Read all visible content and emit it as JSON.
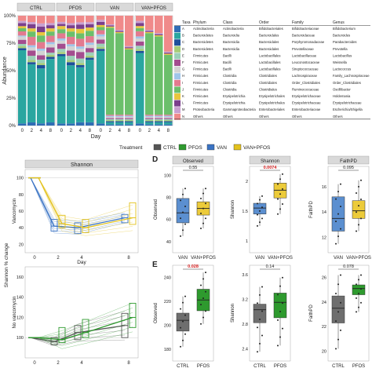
{
  "panel_letters": [
    "D",
    "E"
  ],
  "chart_data": [
    {
      "type": "bar",
      "id": "stacked",
      "facets": [
        "CTRL",
        "PFOS",
        "VAN",
        "VAN+PFOS"
      ],
      "categories": [
        "0",
        "2",
        "4",
        "8"
      ],
      "xlabel": "Day",
      "ylabel": "Abundance",
      "yticks": [
        "0%",
        "25%",
        "50%",
        "75%",
        "100%"
      ],
      "ylim": [
        0,
        1
      ],
      "taxa_colors": [
        "#2f6db5",
        "#2aa6a0",
        "#1e4f9c",
        "#a6cc78",
        "#9cd0b8",
        "#a44d8f",
        "#d3d3d3",
        "#9fc5ea",
        "#e37a8f",
        "#6bbf6b",
        "#e8c63e",
        "#7b3f8c",
        "#c8a0d0",
        "#f08a8a"
      ],
      "series_by_facet": {
        "CTRL": [
          [
            0.02,
            0.03,
            0.02,
            0.03
          ],
          [
            0.7,
            0.55,
            0.5,
            0.6
          ],
          [
            0.02,
            0.02,
            0.03,
            0.02
          ],
          [
            0.02,
            0.02,
            0.02,
            0.02
          ],
          [
            0.02,
            0.04,
            0.03,
            0.02
          ],
          [
            0.04,
            0.05,
            0.04,
            0.05
          ],
          [
            0.03,
            0.03,
            0.04,
            0.03
          ],
          [
            0.01,
            0.02,
            0.02,
            0.02
          ],
          [
            0.04,
            0.08,
            0.06,
            0.06
          ],
          [
            0.03,
            0.05,
            0.06,
            0.04
          ],
          [
            0.02,
            0.03,
            0.03,
            0.03
          ],
          [
            0.03,
            0.04,
            0.05,
            0.03
          ],
          [
            0.02,
            0.02,
            0.03,
            0.02
          ],
          [
            0.05,
            0.06,
            0.07,
            0.07
          ]
        ],
        "PFOS": [
          [
            0.02,
            0.02,
            0.03,
            0.03
          ],
          [
            0.65,
            0.55,
            0.5,
            0.58
          ],
          [
            0.02,
            0.03,
            0.02,
            0.02
          ],
          [
            0.02,
            0.02,
            0.02,
            0.02
          ],
          [
            0.03,
            0.04,
            0.04,
            0.03
          ],
          [
            0.05,
            0.05,
            0.06,
            0.04
          ],
          [
            0.03,
            0.04,
            0.03,
            0.03
          ],
          [
            0.02,
            0.02,
            0.02,
            0.02
          ],
          [
            0.05,
            0.07,
            0.07,
            0.06
          ],
          [
            0.04,
            0.05,
            0.05,
            0.05
          ],
          [
            0.03,
            0.03,
            0.04,
            0.03
          ],
          [
            0.02,
            0.03,
            0.04,
            0.03
          ],
          [
            0.02,
            0.02,
            0.02,
            0.02
          ],
          [
            0.06,
            0.07,
            0.06,
            0.06
          ]
        ],
        "VAN": [
          [
            0.02,
            0.01,
            0.01,
            0.01
          ],
          [
            0.7,
            0.02,
            0.02,
            0.02
          ],
          [
            0.02,
            0.01,
            0.01,
            0.01
          ],
          [
            0.02,
            0.01,
            0.01,
            0.01
          ],
          [
            0.03,
            0.01,
            0.01,
            0.01
          ],
          [
            0.04,
            0.01,
            0.01,
            0.01
          ],
          [
            0.03,
            0.01,
            0.01,
            0.01
          ],
          [
            0.02,
            0.01,
            0.01,
            0.01
          ],
          [
            0.04,
            0.01,
            0.01,
            0.01
          ],
          [
            0.03,
            0.8,
            0.75,
            0.6
          ],
          [
            0.02,
            0.01,
            0.01,
            0.01
          ],
          [
            0.03,
            0.01,
            0.01,
            0.01
          ],
          [
            0.02,
            0.01,
            0.01,
            0.01
          ],
          [
            0.04,
            0.08,
            0.13,
            0.28
          ]
        ],
        "VAN+PFOS": [
          [
            0.02,
            0.01,
            0.01,
            0.01
          ],
          [
            0.68,
            0.02,
            0.02,
            0.02
          ],
          [
            0.02,
            0.01,
            0.01,
            0.01
          ],
          [
            0.02,
            0.01,
            0.01,
            0.01
          ],
          [
            0.03,
            0.01,
            0.01,
            0.01
          ],
          [
            0.04,
            0.01,
            0.01,
            0.01
          ],
          [
            0.03,
            0.01,
            0.01,
            0.01
          ],
          [
            0.02,
            0.01,
            0.01,
            0.01
          ],
          [
            0.05,
            0.01,
            0.01,
            0.01
          ],
          [
            0.03,
            0.75,
            0.72,
            0.55
          ],
          [
            0.02,
            0.01,
            0.01,
            0.01
          ],
          [
            0.03,
            0.01,
            0.01,
            0.01
          ],
          [
            0.02,
            0.01,
            0.01,
            0.01
          ],
          [
            0.05,
            0.13,
            0.16,
            0.33
          ]
        ]
      }
    },
    {
      "type": "table",
      "id": "taxa_table",
      "columns": [
        "Taxa",
        "Phylum",
        "Class",
        "Order",
        "Family",
        "Genus"
      ],
      "rows": [
        [
          "A",
          "Actinobacteria",
          "Actinobacteria",
          "Bifidobacteriales",
          "Bifidobacteriaceae",
          "Bifidobacterium"
        ],
        [
          "B",
          "Bacteroidetes",
          "Bacteroidia",
          "Bacteroidales",
          "Bacteroidaceae",
          "Bacteroides"
        ],
        [
          "C",
          "Bacteroidetes",
          "Bacteroidia",
          "Bacteroidales",
          "Porphyromonadaceae",
          "Parabacteroides"
        ],
        [
          "D",
          "Bacteroidetes",
          "Bacteroidia",
          "Bacteroidales",
          "Prevotellaceae",
          "Prevotella"
        ],
        [
          "E",
          "Firmicutes",
          "Bacilli",
          "Lactobacillales",
          "Lactobacillaceae",
          "Lactobacillus"
        ],
        [
          "F",
          "Firmicutes",
          "Bacilli",
          "Lactobacillales",
          "Leuconostocaceae",
          "Weissella"
        ],
        [
          "G",
          "Firmicutes",
          "Bacilli",
          "Lactobacillales",
          "Streptococcaceae",
          "Lactococcus"
        ],
        [
          "H",
          "Firmicutes",
          "Clostridia",
          "Clostridiales",
          "Lachnospiraceae",
          "Family_Lachnospiraceae"
        ],
        [
          "I",
          "Firmicutes",
          "Clostridia",
          "Clostridiales",
          "Order_Clostridiales",
          "Order_Clostridiales"
        ],
        [
          "J",
          "Firmicutes",
          "Clostridia",
          "Clostridiales",
          "Ruminococcaceae",
          "Oscillibacter"
        ],
        [
          "K",
          "Firmicutes",
          "Erysipelotrichia",
          "Erysipelotrichales",
          "Erysipelotrichaceae",
          "Holdemania"
        ],
        [
          "L",
          "Firmicutes",
          "Erysipelotrichia",
          "Erysipelotrichales",
          "Erysipelotrichaceae",
          "Erysipelotrichaceae"
        ],
        [
          "M",
          "Proteobacteria",
          "Gammaproteobacteria",
          "Enterobacteriales",
          "Enterobacteriaceae",
          "Escherichia/Shigella"
        ],
        [
          "N",
          "Others",
          "Others",
          "Others",
          "Others",
          "Others"
        ]
      ]
    },
    {
      "type": "line",
      "id": "shannon_change",
      "title": "Shannon",
      "legend": {
        "title": "Treatment",
        "entries": [
          "CTRL",
          "PFOS",
          "VAN",
          "VAN+PFOS"
        ],
        "colors": [
          "#555555",
          "#2e9a2e",
          "#3a73c4",
          "#e3c21d"
        ],
        "placement": "top"
      },
      "xlabel": "Day",
      "ylabel": "Shannon % change",
      "x": [
        0,
        2,
        4,
        8
      ],
      "facets": [
        {
          "label": "Vancomycin",
          "ylim": [
            10,
            110
          ],
          "yticks": [
            20,
            40,
            60,
            80,
            100
          ],
          "groups": [
            {
              "name": "VAN",
              "median": [
                100,
                42,
                40,
                52
              ],
              "q1": [
                100,
                36,
                33,
                46
              ],
              "q3": [
                100,
                50,
                46,
                56
              ]
            },
            {
              "name": "VAN+PFOS",
              "median": [
                100,
                45,
                40,
                52
              ],
              "q1": [
                100,
                40,
                34,
                44
              ],
              "q3": [
                100,
                55,
                50,
                70
              ]
            }
          ]
        },
        {
          "label": "No vancomycin",
          "ylim": [
            80,
            170
          ],
          "yticks": [
            100,
            120,
            140,
            160
          ],
          "groups": [
            {
              "name": "CTRL",
              "median": [
                100,
                96,
                105,
                112
              ],
              "q1": [
                100,
                93,
                98,
                100
              ],
              "q3": [
                100,
                100,
                112,
                124
              ]
            },
            {
              "name": "PFOS",
              "median": [
                100,
                98,
                105,
                120
              ],
              "q1": [
                100,
                95,
                100,
                110
              ],
              "q3": [
                100,
                110,
                118,
                134
              ]
            }
          ]
        }
      ]
    },
    {
      "type": "box",
      "id": "alpha_D",
      "panel": "D",
      "categories": [
        "VAN",
        "VAN+PFOS"
      ],
      "colors": [
        "#5b8fd0",
        "#eccb3a"
      ],
      "metrics": [
        {
          "title": "Observed",
          "ylabel": "Observed",
          "yticks": [
            40,
            60,
            80,
            100
          ],
          "ylim": [
            30,
            108
          ],
          "p": "0.55",
          "sig": false,
          "boxes": [
            {
              "min": 45,
              "q1": 57,
              "med": 66,
              "q3": 79,
              "max": 88
            },
            {
              "min": 52,
              "q1": 64,
              "med": 70,
              "q3": 76,
              "max": 88
            }
          ]
        },
        {
          "title": "Shannon",
          "ylabel": "Shannon",
          "yticks": [
            1.0,
            1.5,
            2.0
          ],
          "ylim": [
            0.8,
            2.25
          ],
          "p": "0.0074",
          "sig": true,
          "boxes": [
            {
              "min": 1.25,
              "q1": 1.45,
              "med": 1.55,
              "q3": 1.63,
              "max": 1.75
            },
            {
              "min": 1.45,
              "q1": 1.72,
              "med": 1.85,
              "q3": 1.97,
              "max": 2.12
            }
          ]
        },
        {
          "title": "FaithPD",
          "ylabel": "FaithPD",
          "yticks": [
            12,
            14,
            16
          ],
          "ylim": [
            10.8,
            17.6
          ],
          "p": "0.095",
          "sig": false,
          "boxes": [
            {
              "min": 11.5,
              "q1": 12.5,
              "med": 13.5,
              "q3": 15.2,
              "max": 16.2
            },
            {
              "min": 12.5,
              "q1": 13.5,
              "med": 14.1,
              "q3": 14.9,
              "max": 16.5
            }
          ]
        }
      ]
    },
    {
      "type": "box",
      "id": "alpha_E",
      "panel": "E",
      "categories": [
        "CTRL",
        "PFOS"
      ],
      "colors": [
        "#6e6e6e",
        "#2e9a2e"
      ],
      "metrics": [
        {
          "title": "",
          "ylabel": "Observed",
          "yticks": [
            180,
            200,
            220,
            240
          ],
          "ylim": [
            170,
            250
          ],
          "p": "0.028",
          "sig": true,
          "boxes": [
            {
              "min": 182,
              "q1": 195,
              "med": 204,
              "q3": 210,
              "max": 224
            },
            {
              "min": 201,
              "q1": 212,
              "med": 221,
              "q3": 230,
              "max": 244
            }
          ]
        },
        {
          "title": "",
          "ylabel": "Shannon",
          "yticks": [
            2.4,
            2.8,
            3.2,
            3.6
          ],
          "ylim": [
            2.2,
            3.75
          ],
          "p": "0.14",
          "sig": false,
          "boxes": [
            {
              "min": 2.35,
              "q1": 2.82,
              "med": 3.03,
              "q3": 3.12,
              "max": 3.4
            },
            {
              "min": 2.45,
              "q1": 2.9,
              "med": 3.15,
              "q3": 3.3,
              "max": 3.55
            }
          ]
        },
        {
          "title": "",
          "ylabel": "FaithPD",
          "yticks": [
            20,
            22,
            24,
            26
          ],
          "ylim": [
            19.2,
            27
          ],
          "p": "0.078",
          "sig": false,
          "boxes": [
            {
              "min": 20.2,
              "q1": 22.3,
              "med": 23.5,
              "q3": 24.5,
              "max": 26.2
            },
            {
              "min": 23.2,
              "q1": 24.6,
              "med": 25.1,
              "q3": 25.4,
              "max": 26.2
            }
          ]
        }
      ]
    }
  ]
}
